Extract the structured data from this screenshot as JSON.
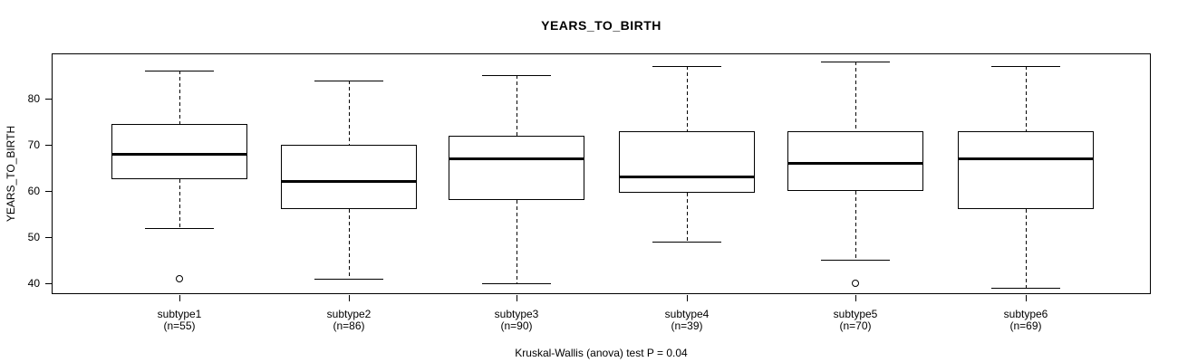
{
  "page": {
    "background": "#ffffff"
  },
  "chart_data": {
    "type": "boxplot",
    "title": "YEARS_TO_BIRTH",
    "ylabel": "YEARS_TO_BIRTH",
    "caption": "Kruskal-Wallis (anova) test P = 0.04",
    "ylim": [
      37.6,
      89.8
    ],
    "yticks": [
      40,
      50,
      60,
      70,
      80
    ],
    "grid": false,
    "legend": "none",
    "colors": {
      "line": "#000000",
      "box_fill": "#ffffff",
      "background": "#ffffff"
    },
    "groups": [
      {
        "label": "subtype1",
        "sublabel": "(n=55)",
        "n": 55,
        "stats": {
          "whisker_low": 52,
          "q1": 62.5,
          "median": 68,
          "q3": 74.5,
          "whisker_high": 86
        },
        "outliers": [
          41
        ]
      },
      {
        "label": "subtype2",
        "sublabel": "(n=86)",
        "n": 86,
        "stats": {
          "whisker_low": 41,
          "q1": 56,
          "median": 62,
          "q3": 70,
          "whisker_high": 84
        },
        "outliers": []
      },
      {
        "label": "subtype3",
        "sublabel": "(n=90)",
        "n": 90,
        "stats": {
          "whisker_low": 40,
          "q1": 58,
          "median": 67,
          "q3": 72,
          "whisker_high": 85
        },
        "outliers": []
      },
      {
        "label": "subtype4",
        "sublabel": "(n=39)",
        "n": 39,
        "stats": {
          "whisker_low": 49,
          "q1": 59.5,
          "median": 63,
          "q3": 73,
          "whisker_high": 87
        },
        "outliers": []
      },
      {
        "label": "subtype5",
        "sublabel": "(n=70)",
        "n": 70,
        "stats": {
          "whisker_low": 45,
          "q1": 60,
          "median": 66,
          "q3": 73,
          "whisker_high": 88
        },
        "outliers": [
          40
        ]
      },
      {
        "label": "subtype6",
        "sublabel": "(n=69)",
        "n": 69,
        "stats": {
          "whisker_low": 39,
          "q1": 56,
          "median": 67,
          "q3": 73,
          "whisker_high": 87
        },
        "outliers": []
      }
    ]
  }
}
